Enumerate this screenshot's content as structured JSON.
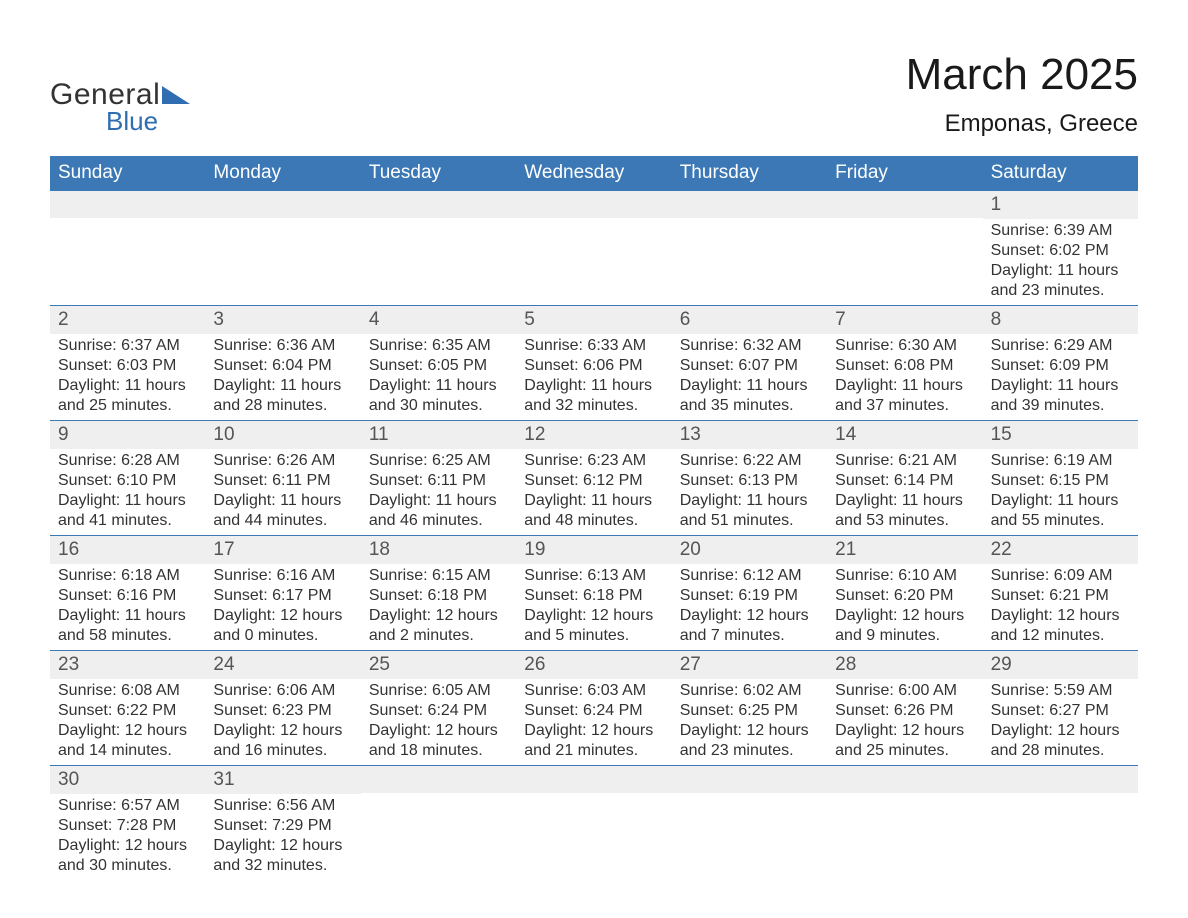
{
  "logo": {
    "line1": "General",
    "line2": "Blue"
  },
  "title": "March 2025",
  "location": "Emponas, Greece",
  "colors": {
    "header_bg": "#3b78b5",
    "header_text": "#ffffff",
    "daynum_bg": "#efefef",
    "daynum_text": "#555555",
    "body_text": "#333333",
    "row_divider": "#3b78b5",
    "logo_accent": "#2f6eb0",
    "page_bg": "#ffffff"
  },
  "typography": {
    "title_fontsize": 44,
    "location_fontsize": 24,
    "dayheader_fontsize": 19,
    "daynum_fontsize": 19,
    "body_fontsize": 16,
    "font_family": "Arial"
  },
  "layout": {
    "columns": 7,
    "rows": 6,
    "start_day_index": 6
  },
  "day_names": [
    "Sunday",
    "Monday",
    "Tuesday",
    "Wednesday",
    "Thursday",
    "Friday",
    "Saturday"
  ],
  "labels": {
    "sunrise": "Sunrise:",
    "sunset": "Sunset:",
    "daylight": "Daylight:"
  },
  "days": [
    {
      "n": 1,
      "sunrise": "6:39 AM",
      "sunset": "6:02 PM",
      "daylight": "11 hours and 23 minutes."
    },
    {
      "n": 2,
      "sunrise": "6:37 AM",
      "sunset": "6:03 PM",
      "daylight": "11 hours and 25 minutes."
    },
    {
      "n": 3,
      "sunrise": "6:36 AM",
      "sunset": "6:04 PM",
      "daylight": "11 hours and 28 minutes."
    },
    {
      "n": 4,
      "sunrise": "6:35 AM",
      "sunset": "6:05 PM",
      "daylight": "11 hours and 30 minutes."
    },
    {
      "n": 5,
      "sunrise": "6:33 AM",
      "sunset": "6:06 PM",
      "daylight": "11 hours and 32 minutes."
    },
    {
      "n": 6,
      "sunrise": "6:32 AM",
      "sunset": "6:07 PM",
      "daylight": "11 hours and 35 minutes."
    },
    {
      "n": 7,
      "sunrise": "6:30 AM",
      "sunset": "6:08 PM",
      "daylight": "11 hours and 37 minutes."
    },
    {
      "n": 8,
      "sunrise": "6:29 AM",
      "sunset": "6:09 PM",
      "daylight": "11 hours and 39 minutes."
    },
    {
      "n": 9,
      "sunrise": "6:28 AM",
      "sunset": "6:10 PM",
      "daylight": "11 hours and 41 minutes."
    },
    {
      "n": 10,
      "sunrise": "6:26 AM",
      "sunset": "6:11 PM",
      "daylight": "11 hours and 44 minutes."
    },
    {
      "n": 11,
      "sunrise": "6:25 AM",
      "sunset": "6:11 PM",
      "daylight": "11 hours and 46 minutes."
    },
    {
      "n": 12,
      "sunrise": "6:23 AM",
      "sunset": "6:12 PM",
      "daylight": "11 hours and 48 minutes."
    },
    {
      "n": 13,
      "sunrise": "6:22 AM",
      "sunset": "6:13 PM",
      "daylight": "11 hours and 51 minutes."
    },
    {
      "n": 14,
      "sunrise": "6:21 AM",
      "sunset": "6:14 PM",
      "daylight": "11 hours and 53 minutes."
    },
    {
      "n": 15,
      "sunrise": "6:19 AM",
      "sunset": "6:15 PM",
      "daylight": "11 hours and 55 minutes."
    },
    {
      "n": 16,
      "sunrise": "6:18 AM",
      "sunset": "6:16 PM",
      "daylight": "11 hours and 58 minutes."
    },
    {
      "n": 17,
      "sunrise": "6:16 AM",
      "sunset": "6:17 PM",
      "daylight": "12 hours and 0 minutes."
    },
    {
      "n": 18,
      "sunrise": "6:15 AM",
      "sunset": "6:18 PM",
      "daylight": "12 hours and 2 minutes."
    },
    {
      "n": 19,
      "sunrise": "6:13 AM",
      "sunset": "6:18 PM",
      "daylight": "12 hours and 5 minutes."
    },
    {
      "n": 20,
      "sunrise": "6:12 AM",
      "sunset": "6:19 PM",
      "daylight": "12 hours and 7 minutes."
    },
    {
      "n": 21,
      "sunrise": "6:10 AM",
      "sunset": "6:20 PM",
      "daylight": "12 hours and 9 minutes."
    },
    {
      "n": 22,
      "sunrise": "6:09 AM",
      "sunset": "6:21 PM",
      "daylight": "12 hours and 12 minutes."
    },
    {
      "n": 23,
      "sunrise": "6:08 AM",
      "sunset": "6:22 PM",
      "daylight": "12 hours and 14 minutes."
    },
    {
      "n": 24,
      "sunrise": "6:06 AM",
      "sunset": "6:23 PM",
      "daylight": "12 hours and 16 minutes."
    },
    {
      "n": 25,
      "sunrise": "6:05 AM",
      "sunset": "6:24 PM",
      "daylight": "12 hours and 18 minutes."
    },
    {
      "n": 26,
      "sunrise": "6:03 AM",
      "sunset": "6:24 PM",
      "daylight": "12 hours and 21 minutes."
    },
    {
      "n": 27,
      "sunrise": "6:02 AM",
      "sunset": "6:25 PM",
      "daylight": "12 hours and 23 minutes."
    },
    {
      "n": 28,
      "sunrise": "6:00 AM",
      "sunset": "6:26 PM",
      "daylight": "12 hours and 25 minutes."
    },
    {
      "n": 29,
      "sunrise": "5:59 AM",
      "sunset": "6:27 PM",
      "daylight": "12 hours and 28 minutes."
    },
    {
      "n": 30,
      "sunrise": "6:57 AM",
      "sunset": "7:28 PM",
      "daylight": "12 hours and 30 minutes."
    },
    {
      "n": 31,
      "sunrise": "6:56 AM",
      "sunset": "7:29 PM",
      "daylight": "12 hours and 32 minutes."
    }
  ]
}
